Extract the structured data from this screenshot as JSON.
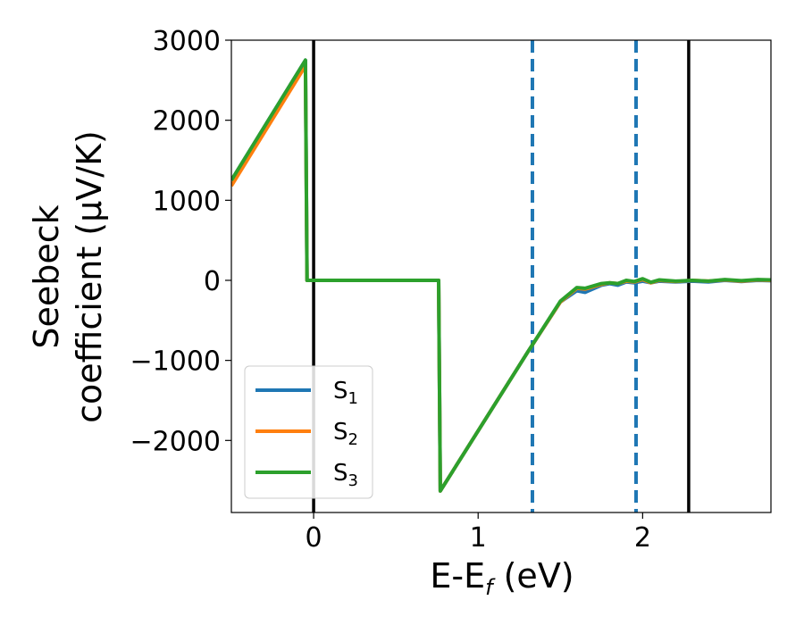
{
  "chart_data": {
    "type": "line",
    "xlabel": {
      "base": "E-E",
      "sub": "f",
      "suffix": " (eV)"
    },
    "ylabel": {
      "line1": "Seebeck",
      "line2": "coefficient  (μV/K)"
    },
    "xlim": [
      -0.5,
      2.78
    ],
    "ylim": [
      -2900,
      3000
    ],
    "xticks": [
      0,
      1,
      2
    ],
    "xtick_labels": [
      "0",
      "1",
      "2"
    ],
    "yticks": [
      3000,
      2000,
      1000,
      0,
      -1000,
      -2000
    ],
    "ytick_labels": [
      "3000",
      "2000",
      "1000",
      "0",
      "−1000",
      "−2000"
    ],
    "grid": false,
    "legend_position": "lower-left",
    "vlines": [
      {
        "x": 0.0,
        "style": "solid",
        "color": "#000000"
      },
      {
        "x": 1.33,
        "style": "dashed",
        "color": "#1f77b4"
      },
      {
        "x": 1.96,
        "style": "dashed",
        "color": "#1f77b4"
      },
      {
        "x": 2.28,
        "style": "solid",
        "color": "#000000"
      }
    ],
    "series": [
      {
        "name": "S",
        "sub": "1",
        "color": "#1f77b4",
        "points": [
          [
            -0.5,
            1250
          ],
          [
            -0.05,
            2750
          ],
          [
            -0.04,
            0
          ],
          [
            0.76,
            0
          ],
          [
            0.77,
            -2630
          ],
          [
            1.3,
            -900
          ],
          [
            1.5,
            -270
          ],
          [
            1.6,
            -130
          ],
          [
            1.65,
            -150
          ],
          [
            1.75,
            -60
          ],
          [
            1.8,
            -40
          ],
          [
            1.85,
            -60
          ],
          [
            1.9,
            -20
          ],
          [
            1.95,
            -30
          ],
          [
            2.0,
            -10
          ],
          [
            2.05,
            -30
          ],
          [
            2.1,
            -10
          ],
          [
            2.2,
            -20
          ],
          [
            2.3,
            -10
          ],
          [
            2.4,
            -20
          ],
          [
            2.5,
            0
          ],
          [
            2.6,
            -15
          ],
          [
            2.7,
            0
          ],
          [
            2.78,
            -5
          ]
        ]
      },
      {
        "name": "S",
        "sub": "2",
        "color": "#ff7f0e",
        "points": [
          [
            -0.5,
            1180
          ],
          [
            -0.05,
            2680
          ],
          [
            -0.04,
            0
          ],
          [
            0.76,
            0
          ],
          [
            0.77,
            -2630
          ],
          [
            1.3,
            -900
          ],
          [
            1.5,
            -270
          ],
          [
            1.6,
            -100
          ],
          [
            1.65,
            -110
          ],
          [
            1.75,
            -50
          ],
          [
            1.8,
            -30
          ],
          [
            1.85,
            -40
          ],
          [
            1.9,
            -10
          ],
          [
            1.95,
            -20
          ],
          [
            2.0,
            10
          ],
          [
            2.05,
            -30
          ],
          [
            2.1,
            0
          ],
          [
            2.2,
            -15
          ],
          [
            2.3,
            0
          ],
          [
            2.4,
            -10
          ],
          [
            2.5,
            5
          ],
          [
            2.6,
            -10
          ],
          [
            2.7,
            5
          ],
          [
            2.78,
            0
          ]
        ]
      },
      {
        "name": "S",
        "sub": "3",
        "color": "#2ca02c",
        "points": [
          [
            -0.5,
            1250
          ],
          [
            -0.05,
            2750
          ],
          [
            -0.04,
            0
          ],
          [
            0.76,
            0
          ],
          [
            0.77,
            -2630
          ],
          [
            1.3,
            -900
          ],
          [
            1.5,
            -260
          ],
          [
            1.6,
            -90
          ],
          [
            1.65,
            -100
          ],
          [
            1.75,
            -40
          ],
          [
            1.8,
            -30
          ],
          [
            1.85,
            -40
          ],
          [
            1.9,
            0
          ],
          [
            1.95,
            -15
          ],
          [
            2.0,
            20
          ],
          [
            2.05,
            -25
          ],
          [
            2.1,
            5
          ],
          [
            2.2,
            -10
          ],
          [
            2.3,
            0
          ],
          [
            2.4,
            -10
          ],
          [
            2.5,
            10
          ],
          [
            2.6,
            -5
          ],
          [
            2.7,
            10
          ],
          [
            2.78,
            5
          ]
        ]
      }
    ]
  }
}
